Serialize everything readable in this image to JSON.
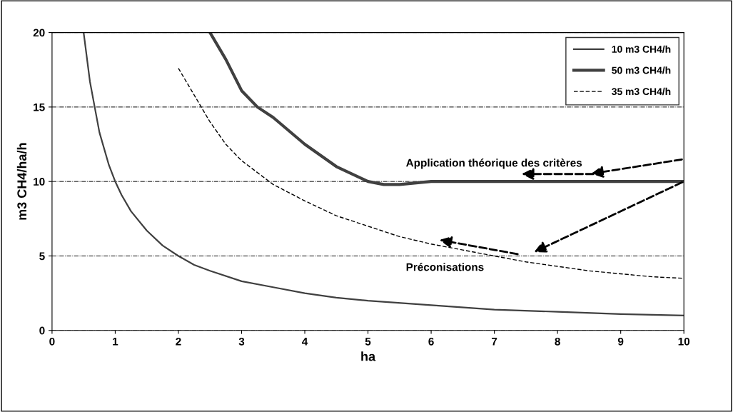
{
  "chart_data": {
    "type": "line",
    "xlabel": "ha",
    "ylabel": "m3 CH4/ha/h",
    "xlim": [
      0,
      10
    ],
    "ylim": [
      0,
      20
    ],
    "xticks": [
      0,
      1,
      2,
      3,
      4,
      5,
      6,
      7,
      8,
      9,
      10
    ],
    "yticks": [
      0,
      5,
      10,
      15,
      20
    ],
    "grid": "y",
    "legend": "top right",
    "marker": "none",
    "series": [
      {
        "name": "10 m3 CH4/h",
        "color": "#404040",
        "line_style": "solid",
        "x": [
          0.5,
          0.6,
          0.75,
          0.9,
          1,
          1.1,
          1.25,
          1.5,
          1.75,
          2,
          2.25,
          2.5,
          3,
          3.5,
          4,
          4.5,
          5,
          6,
          7,
          8,
          9,
          10
        ],
        "values": [
          20,
          16.7,
          13.3,
          11.1,
          10,
          9.1,
          8,
          6.7,
          5.7,
          5,
          4.4,
          4,
          3.3,
          2.9,
          2.5,
          2.2,
          2,
          1.7,
          1.4,
          1.25,
          1.1,
          1
        ]
      },
      {
        "name": "50 m3 CH4/h",
        "color": "#404040",
        "line_style": "solid",
        "x": [
          2.5,
          2.75,
          3,
          3.25,
          3.5,
          4,
          4.5,
          5,
          5.25,
          5.5,
          6,
          7,
          8,
          9,
          10
        ],
        "values": [
          20,
          18.2,
          16.1,
          15,
          14.3,
          12.5,
          11,
          10,
          9.8,
          9.8,
          10,
          10,
          10,
          10,
          10
        ]
      },
      {
        "name": "35 m3 CH4/h",
        "color": "#000000",
        "line_style": "dashed",
        "x": [
          2,
          2.25,
          2.5,
          2.75,
          3,
          3.25,
          3.5,
          4,
          4.5,
          5,
          5.5,
          6,
          6.5,
          7,
          7.5,
          8,
          8.5,
          9,
          9.5,
          10
        ],
        "values": [
          17.6,
          15.8,
          14,
          12.5,
          11.4,
          10.6,
          9.8,
          8.7,
          7.7,
          7,
          6.3,
          5.8,
          5.4,
          5,
          4.6,
          4.3,
          4,
          3.8,
          3.6,
          3.5
        ]
      }
    ],
    "annotations": [
      "Application théorique des critères",
      "Préconisations"
    ]
  }
}
